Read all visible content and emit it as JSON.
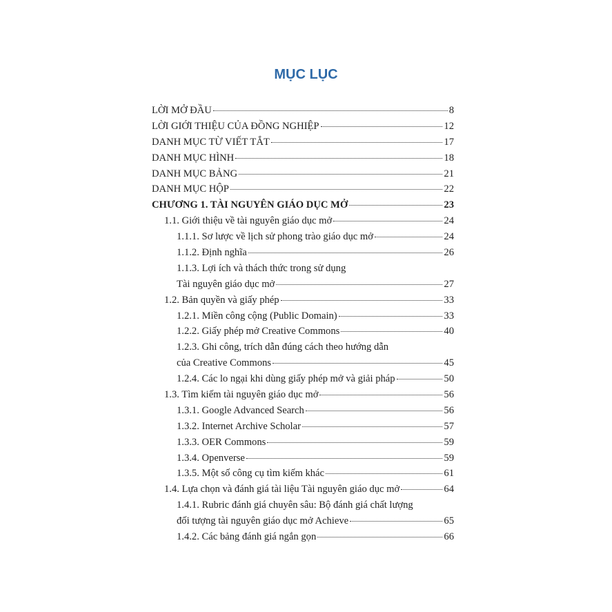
{
  "title": "MỤC LỤC",
  "entries": [
    {
      "level": 0,
      "text": "LỜI MỞ ĐẦU",
      "page": "8"
    },
    {
      "level": 0,
      "text": "LỜI GIỚI THIỆU CỦA ĐỒNG NGHIỆP",
      "page": "12"
    },
    {
      "level": 0,
      "text": "DANH MỤC TỪ VIẾT TẮT",
      "page": "17"
    },
    {
      "level": 0,
      "text": "DANH MỤC HÌNH",
      "page": "18"
    },
    {
      "level": 0,
      "text": "DANH MỤC BẢNG",
      "page": "21"
    },
    {
      "level": 0,
      "text": "DANH MỤC HỘP",
      "page": "22"
    },
    {
      "level": 0,
      "bold": true,
      "text": "CHƯƠNG 1. TÀI NGUYÊN GIÁO DỤC MỞ",
      "page": "23"
    },
    {
      "level": 1,
      "text": "1.1. Giới thiệu về tài nguyên giáo dục mở",
      "page": "24"
    },
    {
      "level": 2,
      "text": "1.1.1. Sơ lược về lịch sử phong trào giáo dục mở",
      "page": "24"
    },
    {
      "level": 2,
      "text": "1.1.2. Định nghĩa",
      "page": "26"
    },
    {
      "level": 2,
      "first": "1.1.3. Lợi ích và thách thức trong sử dụng",
      "text": "Tài nguyên giáo dục mở",
      "page": "27"
    },
    {
      "level": 1,
      "text": "1.2. Bản quyền và giấy phép",
      "page": "33"
    },
    {
      "level": 2,
      "text": "1.2.1. Miền công cộng (Public Domain)",
      "page": "33"
    },
    {
      "level": 2,
      "text": "1.2.2. Giấy phép mở Creative Commons",
      "page": "40"
    },
    {
      "level": 2,
      "first": "1.2.3. Ghi công, trích dẫn đúng cách theo hướng dẫn",
      "text": "của Creative Commons",
      "page": "45"
    },
    {
      "level": 2,
      "text": "1.2.4. Các lo ngại khi dùng giấy phép mở và giải pháp",
      "page": "50"
    },
    {
      "level": 1,
      "text": "1.3. Tìm kiếm tài nguyên giáo dục mở",
      "page": "56"
    },
    {
      "level": 2,
      "text": "1.3.1. Google Advanced Search",
      "page": "56"
    },
    {
      "level": 2,
      "text": "1.3.2. Internet Archive Scholar",
      "page": "57"
    },
    {
      "level": 2,
      "text": "1.3.3. OER Commons",
      "page": "59"
    },
    {
      "level": 2,
      "text": "1.3.4. Openverse",
      "page": "59"
    },
    {
      "level": 2,
      "text": "1.3.5. Một số công cụ tìm kiếm khác",
      "page": "61"
    },
    {
      "level": 1,
      "text": "1.4. Lựa chọn và đánh giá tài liệu Tài nguyên giáo dục mở",
      "page": "64"
    },
    {
      "level": 2,
      "first": "1.4.1. Rubric đánh giá chuyên sâu: Bộ đánh giá chất lượng",
      "text": "đối tượng tài nguyên giáo dục mở Achieve",
      "page": "65"
    },
    {
      "level": 2,
      "text": "1.4.2. Các bảng đánh giá ngắn gọn",
      "page": "66"
    }
  ]
}
